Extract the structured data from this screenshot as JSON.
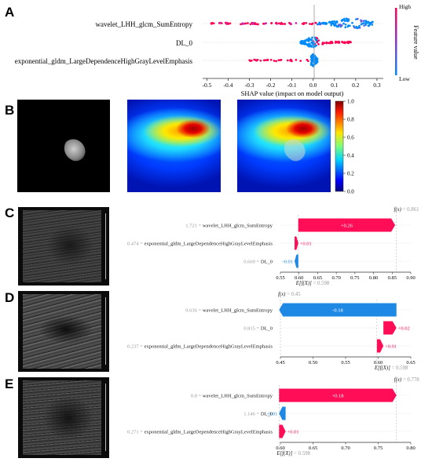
{
  "panels": {
    "a": "A",
    "b": "B",
    "c": "C",
    "d": "D",
    "e": "E"
  },
  "chart_data": [
    {
      "type": "scatter",
      "subtype": "shap-beeswarm",
      "features": [
        "wavelet_LHH_glcm_SumEntropy",
        "DL_0",
        "exponential_gldm_LargeDependenceHighGrayLevelEmphasis"
      ],
      "x_ticks": [
        "-0.5",
        "-0.4",
        "-0.3",
        "-0.2",
        "-0.1",
        "0.0",
        "0.1",
        "0.2",
        "0.3"
      ],
      "xlim": [
        -0.52,
        0.33
      ],
      "xlabel": "SHAP value (impact on model output)",
      "colorbar_label": "Feature value",
      "colorbar_high": "High",
      "colorbar_low": "Low",
      "colors": {
        "high": "#ff0052",
        "low": "#008bfb"
      },
      "series": [
        {
          "feature": "wavelet_LHH_glcm_SumEntropy",
          "shap_range": [
            -0.48,
            0.29
          ]
        },
        {
          "feature": "DL_0",
          "shap_range": [
            -0.06,
            0.18
          ]
        },
        {
          "feature": "exponential_gldm_LargeDependenceHighGrayLevelEmphasis",
          "shap_range": [
            -0.3,
            0.02
          ]
        }
      ]
    },
    {
      "type": "heatmap",
      "colorbar_ticks": [
        "1.0",
        "0.8",
        "0.6",
        "0.4",
        "0.2",
        "0.0"
      ],
      "colorbar_range": [
        0,
        1
      ]
    },
    {
      "type": "bar",
      "subtype": "shap-waterfall",
      "fx": "f(x) = 0.861",
      "efx": "E[f(X)] = 0.598",
      "base": 0.598,
      "final": 0.861,
      "rows": [
        {
          "value": "1.721",
          "feature": "wavelet_LHH_glcm_SumEntropy",
          "contribution": 0.26,
          "label": "+0.26"
        },
        {
          "value": "0.474",
          "feature": "exponential_gldm_LargeDependenceHighGrayLevelEmphasis",
          "contribution": 0.01,
          "label": "+0.01"
        },
        {
          "value": "0.669",
          "feature": "DL_0",
          "contribution": -0.01,
          "label": "-0.01"
        }
      ],
      "x_ticks": [
        "0.55",
        "0.60",
        "0.65",
        "0.70",
        "0.75",
        "0.80",
        "0.85",
        "0.90"
      ],
      "xlim": [
        0.55,
        0.9
      ]
    },
    {
      "type": "bar",
      "subtype": "shap-waterfall",
      "fx": "f(x) = 0.45",
      "efx": "E[f(X)] = 0.598",
      "base": 0.598,
      "final": 0.45,
      "rows": [
        {
          "value": "0.636",
          "feature": "wavelet_LHH_glcm_SumEntropy",
          "contribution": -0.18,
          "label": "-0.18"
        },
        {
          "value": "0.815",
          "feature": "DL_0",
          "contribution": 0.02,
          "label": "+0.02"
        },
        {
          "value": "0.237",
          "feature": "exponential_gldm_LargeDependenceHighGrayLevelEmphasis",
          "contribution": 0.01,
          "label": "+0.01"
        }
      ],
      "x_ticks": [
        "0.45",
        "0.50",
        "0.55",
        "0.60",
        "0.65"
      ],
      "xlim": [
        0.45,
        0.65
      ]
    },
    {
      "type": "bar",
      "subtype": "shap-waterfall",
      "fx": "f(x) = 0.778",
      "efx": "E[f(X)] = 0.598",
      "base": 0.598,
      "final": 0.778,
      "rows": [
        {
          "value": "0.8",
          "feature": "wavelet_LHH_glcm_SumEntropy",
          "contribution": 0.18,
          "label": "+0.18"
        },
        {
          "value": "1.146",
          "feature": "DL_0",
          "contribution": -0.01,
          "label": "-0.01"
        },
        {
          "value": "0.271",
          "feature": "exponential_gldm_LargeDependenceHighGrayLevelEmphasis",
          "contribution": 0.01,
          "label": "+0.01"
        }
      ],
      "x_ticks": [
        "0.60",
        "0.65",
        "0.70",
        "0.75",
        "0.80"
      ],
      "xlim": [
        0.6,
        0.8
      ]
    }
  ]
}
